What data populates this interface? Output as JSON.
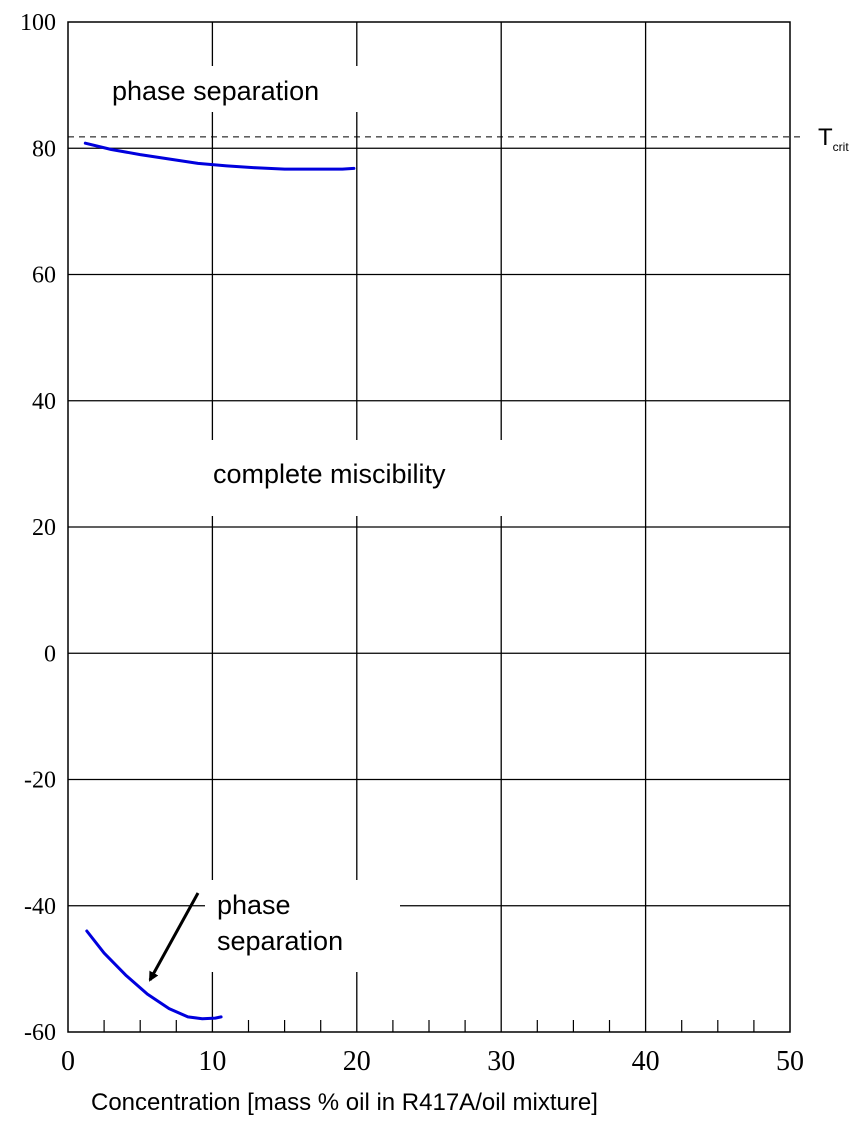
{
  "chart_data": {
    "type": "line",
    "xlabel": "Concentration [mass % oil in R417A/oil mixture]",
    "ylabel": "",
    "xlim": [
      0,
      50
    ],
    "ylim": [
      -60,
      100
    ],
    "x_ticks": [
      "0",
      "10",
      "20",
      "30",
      "40",
      "50"
    ],
    "y_ticks": [
      "100",
      "80",
      "60",
      "40",
      "20",
      "0",
      "-20",
      "-40",
      "-60"
    ],
    "grid": true,
    "series": [
      {
        "color": "#0000dd",
        "points": [
          [
            1.2,
            80.8
          ],
          [
            3,
            79.8
          ],
          [
            5,
            79.0
          ],
          [
            7,
            78.3
          ],
          [
            9,
            77.6
          ],
          [
            11,
            77.2
          ],
          [
            13,
            76.9
          ],
          [
            15,
            76.7
          ],
          [
            17,
            76.7
          ],
          [
            19,
            76.7
          ],
          [
            19.8,
            76.8
          ]
        ]
      },
      {
        "color": "#0000dd",
        "points": [
          [
            1.3,
            -44.0
          ],
          [
            2.5,
            -47.5
          ],
          [
            4,
            -51.0
          ],
          [
            5.5,
            -54.0
          ],
          [
            7,
            -56.3
          ],
          [
            8.3,
            -57.6
          ],
          [
            9.3,
            -57.9
          ],
          [
            10.2,
            -57.8
          ],
          [
            10.6,
            -57.6
          ]
        ]
      }
    ],
    "reference_line": {
      "y": 81.8,
      "style": "dashed",
      "label_main": "T",
      "label_sub": "crit"
    },
    "annotations": {
      "phase_separation_top": "phase separation",
      "complete_miscibility": "complete miscibility",
      "phase_separation_bottom_line1": "phase",
      "phase_separation_bottom_line2": "separation"
    }
  }
}
